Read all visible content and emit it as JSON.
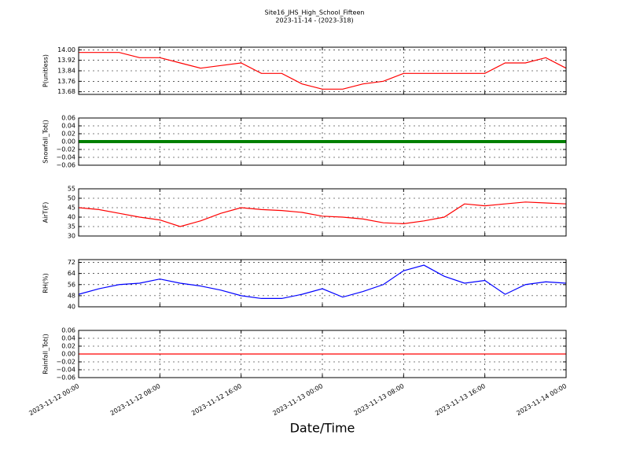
{
  "chart_data": [
    {
      "type": "line",
      "title": "Site16_JHS_High_School_Fifteen",
      "subtitle": "2023-11-14 - (2023-318)",
      "ylabel": "P(unitless)",
      "x": [
        "2023-11-12 00:00",
        "2023-11-12 02:00",
        "2023-11-12 04:00",
        "2023-11-12 06:00",
        "2023-11-12 08:00",
        "2023-11-12 10:00",
        "2023-11-12 12:00",
        "2023-11-12 14:00",
        "2023-11-12 16:00",
        "2023-11-12 18:00",
        "2023-11-12 20:00",
        "2023-11-12 22:00",
        "2023-11-13 00:00",
        "2023-11-13 02:00",
        "2023-11-13 04:00",
        "2023-11-13 06:00",
        "2023-11-13 08:00",
        "2023-11-13 10:00",
        "2023-11-13 12:00",
        "2023-11-13 14:00",
        "2023-11-13 16:00",
        "2023-11-13 18:00",
        "2023-11-13 20:00",
        "2023-11-13 22:00",
        "2023-11-14 00:00"
      ],
      "values": [
        13.98,
        13.98,
        13.98,
        13.94,
        13.94,
        13.9,
        13.86,
        13.88,
        13.9,
        13.82,
        13.82,
        13.74,
        13.7,
        13.7,
        13.74,
        13.76,
        13.82,
        13.82,
        13.82,
        13.82,
        13.82,
        13.9,
        13.9,
        13.94,
        13.86
      ],
      "color": "#ff0000",
      "xlim": [
        "2023-11-12 00:00",
        "2023-11-14 00:00"
      ],
      "xticks": [
        "2023-11-12 00:00",
        "2023-11-12 08:00",
        "2023-11-12 16:00",
        "2023-11-13 00:00",
        "2023-11-13 08:00",
        "2023-11-13 16:00",
        "2023-11-14 00:00"
      ],
      "ylim": [
        13.66,
        14.02
      ],
      "yticks": [
        13.68,
        13.76,
        13.84,
        13.92,
        {
          "value": 14.0,
          "label": "14.00"
        }
      ],
      "grid": true
    },
    {
      "type": "line",
      "ylabel": "Snowfall_Tot()",
      "x": [
        "2023-11-12 00:00",
        "2023-11-12 02:00",
        "2023-11-12 04:00",
        "2023-11-12 06:00",
        "2023-11-12 08:00",
        "2023-11-12 10:00",
        "2023-11-12 12:00",
        "2023-11-12 14:00",
        "2023-11-12 16:00",
        "2023-11-12 18:00",
        "2023-11-12 20:00",
        "2023-11-12 22:00",
        "2023-11-13 00:00",
        "2023-11-13 02:00",
        "2023-11-13 04:00",
        "2023-11-13 06:00",
        "2023-11-13 08:00",
        "2023-11-13 10:00",
        "2023-11-13 12:00",
        "2023-11-13 14:00",
        "2023-11-13 16:00",
        "2023-11-13 18:00",
        "2023-11-13 20:00",
        "2023-11-13 22:00",
        "2023-11-14 00:00"
      ],
      "values": [
        0,
        0,
        0,
        0,
        0,
        0,
        0,
        0,
        0,
        0,
        0,
        0,
        0,
        0,
        0,
        0,
        0,
        0,
        0,
        0,
        0,
        0,
        0,
        0,
        0
      ],
      "color": "#008000",
      "xlim": [
        "2023-11-12 00:00",
        "2023-11-14 00:00"
      ],
      "xticks": [
        "2023-11-12 00:00",
        "2023-11-12 08:00",
        "2023-11-12 16:00",
        "2023-11-13 00:00",
        "2023-11-13 08:00",
        "2023-11-13 16:00",
        "2023-11-14 00:00"
      ],
      "ylim": [
        -0.06,
        0.06
      ],
      "yticks": [
        {
          "value": -0.06,
          "label": "−0.06"
        },
        {
          "value": -0.04,
          "label": "−0.04"
        },
        {
          "value": -0.02,
          "label": "−0.02"
        },
        {
          "value": 0,
          "label": "0.00"
        },
        0.02,
        0.04,
        0.06
      ],
      "grid": true
    },
    {
      "type": "line",
      "ylabel": "AirT(F)",
      "x": [
        "2023-11-12 00:00",
        "2023-11-12 02:00",
        "2023-11-12 04:00",
        "2023-11-12 06:00",
        "2023-11-12 08:00",
        "2023-11-12 10:00",
        "2023-11-12 12:00",
        "2023-11-12 14:00",
        "2023-11-12 16:00",
        "2023-11-12 18:00",
        "2023-11-12 20:00",
        "2023-11-12 22:00",
        "2023-11-13 00:00",
        "2023-11-13 02:00",
        "2023-11-13 04:00",
        "2023-11-13 06:00",
        "2023-11-13 08:00",
        "2023-11-13 10:00",
        "2023-11-13 12:00",
        "2023-11-13 14:00",
        "2023-11-13 16:00",
        "2023-11-13 18:00",
        "2023-11-13 20:00",
        "2023-11-13 22:00",
        "2023-11-14 00:00"
      ],
      "values": [
        45,
        44,
        42,
        40,
        38.5,
        35,
        38,
        42,
        45,
        44,
        43.5,
        42.5,
        40.5,
        40,
        39,
        37,
        36.5,
        38,
        40,
        47,
        46,
        47,
        48,
        47.5,
        47
      ],
      "color": "#ff0000",
      "xlim": [
        "2023-11-12 00:00",
        "2023-11-14 00:00"
      ],
      "xticks": [
        "2023-11-12 00:00",
        "2023-11-12 08:00",
        "2023-11-12 16:00",
        "2023-11-13 00:00",
        "2023-11-13 08:00",
        "2023-11-13 16:00",
        "2023-11-14 00:00"
      ],
      "ylim": [
        30,
        55
      ],
      "yticks": [
        30,
        35,
        40,
        45,
        50,
        55
      ],
      "grid": true
    },
    {
      "type": "line",
      "ylabel": "RH(%)",
      "x": [
        "2023-11-12 00:00",
        "2023-11-12 02:00",
        "2023-11-12 04:00",
        "2023-11-12 06:00",
        "2023-11-12 08:00",
        "2023-11-12 10:00",
        "2023-11-12 12:00",
        "2023-11-12 14:00",
        "2023-11-12 16:00",
        "2023-11-12 18:00",
        "2023-11-12 20:00",
        "2023-11-12 22:00",
        "2023-11-13 00:00",
        "2023-11-13 02:00",
        "2023-11-13 04:00",
        "2023-11-13 06:00",
        "2023-11-13 08:00",
        "2023-11-13 10:00",
        "2023-11-13 12:00",
        "2023-11-13 14:00",
        "2023-11-13 16:00",
        "2023-11-13 18:00",
        "2023-11-13 20:00",
        "2023-11-13 22:00",
        "2023-11-14 00:00"
      ],
      "values": [
        49,
        53,
        56,
        57,
        60,
        57,
        55,
        52,
        48,
        46,
        46,
        49,
        53,
        47,
        51,
        56,
        66,
        70,
        62,
        57,
        59,
        49,
        56,
        58,
        57
      ],
      "color": "#0000ff",
      "xlim": [
        "2023-11-12 00:00",
        "2023-11-14 00:00"
      ],
      "xticks": [
        "2023-11-12 00:00",
        "2023-11-12 08:00",
        "2023-11-12 16:00",
        "2023-11-13 00:00",
        "2023-11-13 08:00",
        "2023-11-13 16:00",
        "2023-11-14 00:00"
      ],
      "ylim": [
        40,
        74
      ],
      "yticks": [
        40,
        48,
        56,
        64,
        72
      ],
      "grid": true
    },
    {
      "type": "line",
      "ylabel": "Rainfall_Tot()",
      "xlabel": "Date/Time",
      "x": [
        "2023-11-12 00:00",
        "2023-11-12 02:00",
        "2023-11-12 04:00",
        "2023-11-12 06:00",
        "2023-11-12 08:00",
        "2023-11-12 10:00",
        "2023-11-12 12:00",
        "2023-11-12 14:00",
        "2023-11-12 16:00",
        "2023-11-12 18:00",
        "2023-11-12 20:00",
        "2023-11-12 22:00",
        "2023-11-13 00:00",
        "2023-11-13 02:00",
        "2023-11-13 04:00",
        "2023-11-13 06:00",
        "2023-11-13 08:00",
        "2023-11-13 10:00",
        "2023-11-13 12:00",
        "2023-11-13 14:00",
        "2023-11-13 16:00",
        "2023-11-13 18:00",
        "2023-11-13 20:00",
        "2023-11-13 22:00",
        "2023-11-14 00:00"
      ],
      "values": [
        0,
        0,
        0,
        0,
        0,
        0,
        0,
        0,
        0,
        0,
        0,
        0,
        0,
        0,
        0,
        0,
        0,
        0,
        0,
        0,
        0,
        0,
        0,
        0,
        0
      ],
      "color": "#ff0000",
      "xlim": [
        "2023-11-12 00:00",
        "2023-11-14 00:00"
      ],
      "xticks": [
        "2023-11-12 00:00",
        "2023-11-12 08:00",
        "2023-11-12 16:00",
        "2023-11-13 00:00",
        "2023-11-13 08:00",
        "2023-11-13 16:00",
        "2023-11-14 00:00"
      ],
      "ylim": [
        -0.06,
        0.06
      ],
      "yticks": [
        {
          "value": -0.06,
          "label": "−0.06"
        },
        {
          "value": -0.04,
          "label": "−0.04"
        },
        {
          "value": -0.02,
          "label": "−0.02"
        },
        {
          "value": 0,
          "label": "0.00"
        },
        0.02,
        0.04,
        0.06
      ],
      "grid": true
    }
  ]
}
